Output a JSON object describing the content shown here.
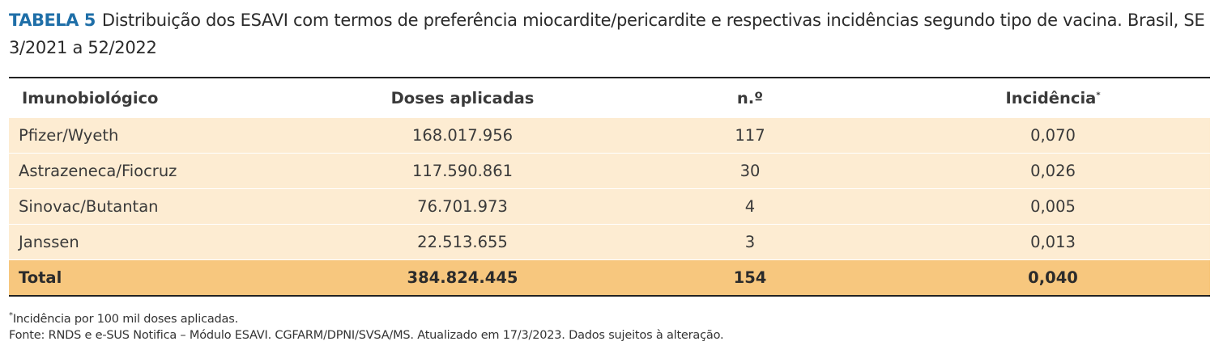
{
  "caption": {
    "label": "TABELA 5",
    "text": "Distribuição dos ESAVI com termos de preferência miocardite/pericardite e respectivas incidências segundo tipo de vacina. Brasil, SE 3/2021 a 52/2022"
  },
  "table": {
    "headers": [
      "Imunobiológico",
      "Doses aplicadas",
      "n.º",
      "Incidência"
    ],
    "header_sup": "*",
    "rows": [
      {
        "vaccine": "Pfizer/Wyeth",
        "doses": "168.017.956",
        "n": "117",
        "incidence": "0,070"
      },
      {
        "vaccine": "Astrazeneca/Fiocruz",
        "doses": "117.590.861",
        "n": "30",
        "incidence": "0,026"
      },
      {
        "vaccine": "Sinovac/Butantan",
        "doses": "76.701.973",
        "n": "4",
        "incidence": "0,005"
      },
      {
        "vaccine": "Janssen",
        "doses": "22.513.655",
        "n": "3",
        "incidence": "0,013"
      }
    ],
    "total": {
      "vaccine": "Total",
      "doses": "384.824.445",
      "n": "154",
      "incidence": "0,040"
    }
  },
  "footnotes": {
    "note_sup": "*",
    "note": "Incidência por 100 mil doses aplicadas.",
    "source": "Fonte: RNDS e e-SUS Notifica – Módulo ESAVI. CGFARM/DPNI/SVSA/MS. Atualizado em 17/3/2023. Dados sujeitos à alteração."
  },
  "colors": {
    "label": "#1f6fa8",
    "row_bg": "#fdecd2",
    "total_bg": "#f7c77e"
  }
}
